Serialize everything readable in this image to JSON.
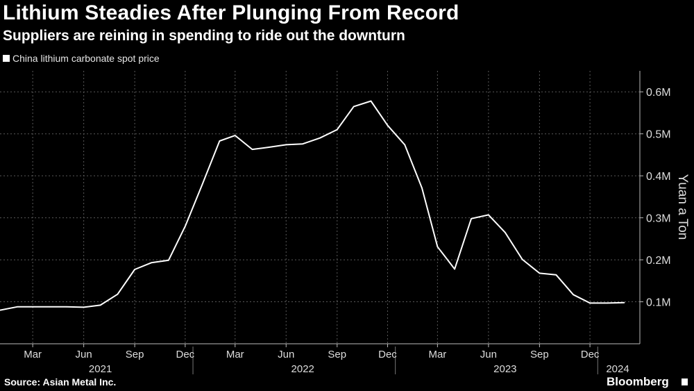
{
  "title": "Lithium Steadies After Plunging From Record",
  "subtitle": "Suppliers are reining in spending to ride out the downturn",
  "legend": {
    "label": "China lithium carbonate spot price"
  },
  "source": "Source: Asian Metal Inc.",
  "brand": "Bloomberg",
  "colors": {
    "background": "#000000",
    "line": "#ffffff",
    "grid": "#555555",
    "text": "#dddddd"
  },
  "chart_data": {
    "type": "line",
    "title": "Lithium Steadies After Plunging From Record",
    "subtitle": "Suppliers are reining in spending to ride out the downturn",
    "ylabel": "Yuan a Ton",
    "xlabel": "",
    "ylim": [
      0,
      650000
    ],
    "yticks": [
      100000,
      200000,
      300000,
      400000,
      500000,
      600000
    ],
    "ytick_labels": [
      "0.1M",
      "0.2M",
      "0.3M",
      "0.4M",
      "0.5M",
      "0.6M"
    ],
    "xticks": [
      {
        "date": "2021-03-01",
        "label": "Mar"
      },
      {
        "date": "2021-06-01",
        "label": "Jun"
      },
      {
        "date": "2021-09-01",
        "label": "Sep"
      },
      {
        "date": "2021-12-01",
        "label": "Dec"
      },
      {
        "date": "2022-03-01",
        "label": "Mar"
      },
      {
        "date": "2022-06-01",
        "label": "Jun"
      },
      {
        "date": "2022-09-01",
        "label": "Sep"
      },
      {
        "date": "2022-12-01",
        "label": "Dec"
      },
      {
        "date": "2023-03-01",
        "label": "Mar"
      },
      {
        "date": "2023-06-01",
        "label": "Jun"
      },
      {
        "date": "2023-09-01",
        "label": "Sep"
      },
      {
        "date": "2023-12-01",
        "label": "Dec"
      }
    ],
    "year_labels": [
      {
        "label": "2021",
        "center": "2021-07-01"
      },
      {
        "label": "2022",
        "center": "2022-07-01"
      },
      {
        "label": "2023",
        "center": "2023-07-01"
      },
      {
        "label": "2024",
        "center": "2024-01-20"
      }
    ],
    "year_dividers": [
      "2021-12-15",
      "2022-12-15",
      "2023-12-15"
    ],
    "grid": true,
    "legend_position": "top-left",
    "series": [
      {
        "name": "China lithium carbonate spot price",
        "x": [
          "2021-01-01",
          "2021-02-01",
          "2021-03-01",
          "2021-04-01",
          "2021-05-01",
          "2021-06-01",
          "2021-07-01",
          "2021-08-01",
          "2021-09-01",
          "2021-10-01",
          "2021-11-01",
          "2021-12-01",
          "2022-01-01",
          "2022-02-01",
          "2022-03-01",
          "2022-04-01",
          "2022-05-01",
          "2022-06-01",
          "2022-07-01",
          "2022-08-01",
          "2022-09-01",
          "2022-10-01",
          "2022-11-01",
          "2022-12-01",
          "2023-01-01",
          "2023-02-01",
          "2023-03-01",
          "2023-04-01",
          "2023-05-01",
          "2023-06-01",
          "2023-07-01",
          "2023-08-01",
          "2023-09-01",
          "2023-10-01",
          "2023-11-01",
          "2023-12-01",
          "2024-01-01",
          "2024-02-01"
        ],
        "values": [
          80000,
          88000,
          88000,
          88000,
          88000,
          87000,
          92000,
          118000,
          177000,
          193000,
          199000,
          280000,
          380000,
          483000,
          496000,
          463000,
          468000,
          474000,
          476000,
          490000,
          510000,
          565000,
          578000,
          520000,
          474000,
          371000,
          231000,
          178000,
          298000,
          307000,
          265000,
          201000,
          168000,
          164000,
          117000,
          97000,
          97000,
          98000
        ]
      }
    ]
  }
}
